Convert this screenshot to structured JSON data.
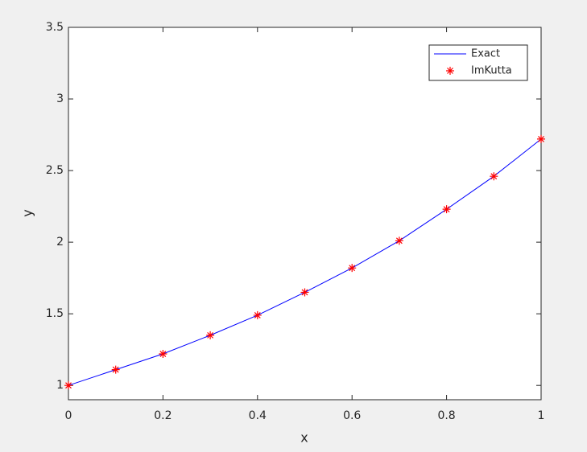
{
  "chart_data": {
    "type": "line",
    "x_label": "x",
    "y_label": "y",
    "x": [
      0,
      0.1,
      0.2,
      0.3,
      0.4,
      0.5,
      0.6,
      0.7,
      0.8,
      0.9,
      1
    ],
    "series": [
      {
        "name": "Exact",
        "color": "#0000ff",
        "style": "line",
        "values": [
          1,
          1.11,
          1.22,
          1.35,
          1.49,
          1.65,
          1.82,
          2.01,
          2.23,
          2.46,
          2.72
        ]
      },
      {
        "name": "ImKutta",
        "color": "#ff0000",
        "style": "markers",
        "values": [
          1,
          1.11,
          1.22,
          1.35,
          1.49,
          1.65,
          1.82,
          2.01,
          2.23,
          2.46,
          2.72
        ]
      }
    ],
    "xlim": [
      0,
      1
    ],
    "xticks": [
      0,
      0.2,
      0.4,
      0.6,
      0.8,
      1
    ],
    "ylim": [
      0.9,
      3.5
    ],
    "yticks": [
      1,
      1.5,
      2,
      2.5,
      3,
      3.5
    ],
    "legend": "northeast"
  }
}
